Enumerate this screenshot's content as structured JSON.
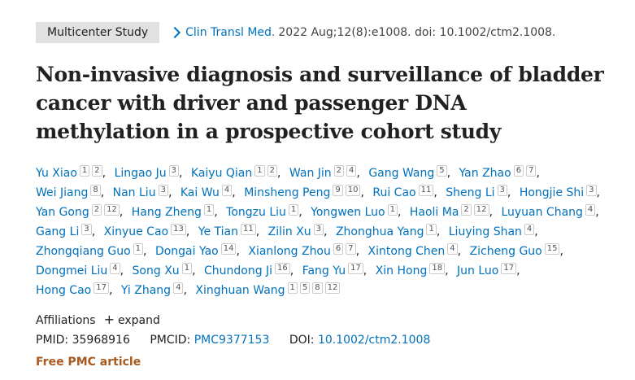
{
  "header": {
    "badge": "Multicenter Study",
    "journal": "Clin Transl Med.",
    "citation": "2022 Aug;12(8):e1008. doi: 10.1002/ctm2.1008."
  },
  "title": "Non-invasive diagnosis and surveillance of bladder cancer with driver and passenger DNA methylation in a prospective cohort study",
  "authors": [
    {
      "name": "Yu Xiao",
      "affiliations": [
        "1",
        "2"
      ]
    },
    {
      "name": "Lingao Ju",
      "affiliations": [
        "3"
      ]
    },
    {
      "name": "Kaiyu Qian",
      "affiliations": [
        "1",
        "2"
      ]
    },
    {
      "name": "Wan Jin",
      "affiliations": [
        "2",
        "4"
      ]
    },
    {
      "name": "Gang Wang",
      "affiliations": [
        "5"
      ]
    },
    {
      "name": "Yan Zhao",
      "affiliations": [
        "6",
        "7"
      ]
    },
    {
      "name": "Wei Jiang",
      "affiliations": [
        "8"
      ]
    },
    {
      "name": "Nan Liu",
      "affiliations": [
        "3"
      ]
    },
    {
      "name": "Kai Wu",
      "affiliations": [
        "4"
      ]
    },
    {
      "name": "Minsheng Peng",
      "affiliations": [
        "9",
        "10"
      ]
    },
    {
      "name": "Rui Cao",
      "affiliations": [
        "11"
      ]
    },
    {
      "name": "Sheng Li",
      "affiliations": [
        "3"
      ]
    },
    {
      "name": "Hongjie Shi",
      "affiliations": [
        "3"
      ]
    },
    {
      "name": "Yan Gong",
      "affiliations": [
        "2",
        "12"
      ]
    },
    {
      "name": "Hang Zheng",
      "affiliations": [
        "1"
      ]
    },
    {
      "name": "Tongzu Liu",
      "affiliations": [
        "1"
      ]
    },
    {
      "name": "Yongwen Luo",
      "affiliations": [
        "1"
      ]
    },
    {
      "name": "Haoli Ma",
      "affiliations": [
        "2",
        "12"
      ]
    },
    {
      "name": "Luyuan Chang",
      "affiliations": [
        "4"
      ]
    },
    {
      "name": "Gang Li",
      "affiliations": [
        "3"
      ]
    },
    {
      "name": "Xinyue Cao",
      "affiliations": [
        "13"
      ]
    },
    {
      "name": "Ye Tian",
      "affiliations": [
        "11"
      ]
    },
    {
      "name": "Zilin Xu",
      "affiliations": [
        "3"
      ]
    },
    {
      "name": "Zhonghua Yang",
      "affiliations": [
        "1"
      ]
    },
    {
      "name": "Liuying Shan",
      "affiliations": [
        "4"
      ]
    },
    {
      "name": "Zhongqiang Guo",
      "affiliations": [
        "1"
      ]
    },
    {
      "name": "Dongai Yao",
      "affiliations": [
        "14"
      ]
    },
    {
      "name": "Xianlong Zhou",
      "affiliations": [
        "6",
        "7"
      ]
    },
    {
      "name": "Xintong Chen",
      "affiliations": [
        "4"
      ]
    },
    {
      "name": "Zicheng Guo",
      "affiliations": [
        "15"
      ]
    },
    {
      "name": "Dongmei Liu",
      "affiliations": [
        "4"
      ]
    },
    {
      "name": "Song Xu",
      "affiliations": [
        "1"
      ]
    },
    {
      "name": "Chundong Ji",
      "affiliations": [
        "16"
      ]
    },
    {
      "name": "Fang Yu",
      "affiliations": [
        "17"
      ]
    },
    {
      "name": "Xin Hong",
      "affiliations": [
        "18"
      ]
    },
    {
      "name": "Jun Luo",
      "affiliations": [
        "17"
      ]
    },
    {
      "name": "Hong Cao",
      "affiliations": [
        "17"
      ]
    },
    {
      "name": "Yi Zhang",
      "affiliations": [
        "4"
      ]
    },
    {
      "name": "Xinghuan Wang",
      "affiliations": [
        "1",
        "5",
        "8",
        "12"
      ]
    }
  ],
  "affiliations": {
    "label": "Affiliations",
    "expand": "expand"
  },
  "identifiers": {
    "pmid_label": "PMID:",
    "pmid": "35968916",
    "pmcid_label": "PMCID:",
    "pmcid": "PMC9377153",
    "doi_label": "DOI:",
    "doi": "10.1002/ctm2.1008"
  },
  "free_label": "Free PMC article"
}
